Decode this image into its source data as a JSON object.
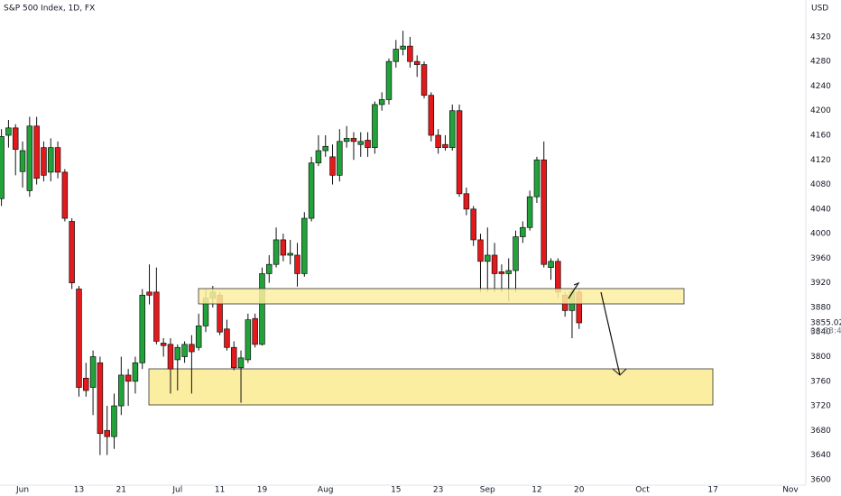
{
  "chart_data": {
    "type": "candlestick",
    "title": "S&P 500 Index, 1D, FX",
    "currency": "USD",
    "countdown": "06:33:46",
    "up_color": "#22a33a",
    "down_color": "#e3191c",
    "grid": false,
    "categories": [
      null,
      null,
      null,
      "Jun",
      null,
      null,
      null,
      null,
      null,
      null,
      null,
      "13",
      null,
      null,
      null,
      null,
      null,
      "21",
      null,
      null,
      null,
      null,
      null,
      null,
      null,
      "Jul",
      null,
      null,
      null,
      null,
      null,
      "11",
      null,
      null,
      null,
      null,
      null,
      "19",
      null,
      null,
      null,
      null,
      null,
      null,
      null,
      null,
      "Aug",
      null,
      null,
      null,
      null,
      null,
      null,
      null,
      null,
      null,
      "15",
      null,
      null,
      null,
      null,
      null,
      "23",
      null,
      null,
      null,
      null,
      null,
      null,
      "Sep",
      null,
      null,
      null,
      null,
      null,
      null,
      "12",
      null,
      null,
      null,
      null,
      null,
      "20",
      null,
      null,
      null,
      null,
      null,
      null,
      null,
      null,
      "Oct",
      null,
      null,
      null,
      null,
      null,
      null,
      null,
      null,
      null,
      "17",
      null,
      null,
      null,
      null,
      null,
      null,
      null,
      null,
      null,
      null,
      "Nov",
      null
    ],
    "open": [
      4057,
      4160,
      4172,
      4101,
      4070,
      4175,
      4140,
      4100,
      4140,
      4100,
      4020,
      3910,
      3765,
      3750,
      3790,
      3680,
      3670,
      3720,
      3770,
      3760,
      3790,
      3905,
      3905,
      3822,
      3820,
      3795,
      3800,
      3820,
      3815,
      3850,
      3895,
      3900,
      3845,
      3815,
      3782,
      3795,
      3862,
      3820,
      3935,
      3950,
      3990,
      3965,
      3965,
      3935,
      4025,
      4115,
      4135,
      4125,
      4095,
      4150,
      4155,
      4145,
      4152,
      4140,
      4210,
      4218,
      4280,
      4300,
      4305,
      4280,
      4275,
      4225,
      4160,
      4145,
      4140,
      4200,
      4065,
      4040,
      3990,
      3955,
      3965,
      3938,
      3935,
      3940,
      3995,
      4010,
      4060,
      4120,
      3945,
      3955,
      3900,
      3875,
      3905,
      null,
      null,
      null,
      null,
      null,
      null,
      null,
      null,
      null,
      null,
      null,
      null,
      null,
      null,
      null,
      null,
      null,
      null,
      null,
      null,
      null,
      null,
      null,
      null,
      null,
      null,
      null,
      null,
      null,
      null,
      null
    ],
    "high": [
      4170,
      4185,
      4178,
      4150,
      4190,
      4190,
      4150,
      4155,
      4150,
      4105,
      4025,
      3915,
      3790,
      3810,
      3800,
      3720,
      3740,
      3800,
      3780,
      3800,
      3910,
      3950,
      3945,
      3830,
      3830,
      3820,
      3825,
      3835,
      3870,
      3910,
      3915,
      3905,
      3860,
      3825,
      3810,
      3870,
      3870,
      3945,
      3965,
      4010,
      4000,
      3990,
      3985,
      4035,
      4125,
      4160,
      4160,
      4145,
      4170,
      4175,
      4165,
      4165,
      4165,
      4215,
      4230,
      4285,
      4315,
      4330,
      4320,
      4290,
      4280,
      4230,
      4170,
      4160,
      4210,
      4210,
      4075,
      4045,
      4000,
      4010,
      3985,
      3950,
      3960,
      4005,
      4020,
      4070,
      4125,
      4150,
      3960,
      3960,
      3905,
      3910,
      3910,
      null,
      null,
      null,
      null,
      null,
      null,
      null,
      null,
      null,
      null,
      null,
      null,
      null,
      null,
      null,
      null,
      null,
      null,
      null,
      null,
      null,
      null,
      null,
      null,
      null,
      null,
      null,
      null,
      null,
      null,
      null
    ],
    "low": [
      4045,
      4140,
      4095,
      4075,
      4060,
      4080,
      4085,
      4085,
      4090,
      4020,
      3910,
      3735,
      3735,
      3705,
      3640,
      3640,
      3650,
      3705,
      3720,
      3740,
      3780,
      3885,
      3820,
      3800,
      3740,
      3745,
      3790,
      3740,
      3810,
      3840,
      3880,
      3835,
      3810,
      3778,
      3725,
      3790,
      3815,
      3818,
      3920,
      3945,
      3955,
      3950,
      3914,
      3930,
      4020,
      4110,
      4125,
      4080,
      4085,
      4140,
      4120,
      4125,
      4125,
      4130,
      4200,
      4210,
      4270,
      4290,
      4270,
      4255,
      4220,
      4150,
      4130,
      4135,
      4135,
      4060,
      4030,
      3980,
      3905,
      3905,
      3905,
      3905,
      3890,
      3905,
      3985,
      4005,
      4050,
      3945,
      3925,
      3895,
      3865,
      3830,
      3845,
      null,
      null,
      null,
      null,
      null,
      null,
      null,
      null,
      null,
      null,
      null,
      null,
      null,
      null,
      null,
      null,
      null,
      null,
      null,
      null,
      null,
      null,
      null,
      null,
      null,
      null,
      null,
      null,
      null,
      null,
      null
    ],
    "close": [
      4158,
      4172,
      4137,
      4135,
      4175,
      4090,
      4095,
      4140,
      4100,
      4025,
      3920,
      3750,
      3745,
      3800,
      3675,
      3670,
      3720,
      3770,
      3760,
      3790,
      3900,
      3900,
      3825,
      3818,
      3780,
      3815,
      3820,
      3808,
      3850,
      3895,
      3905,
      3840,
      3815,
      3782,
      3798,
      3860,
      3820,
      3935,
      3950,
      3990,
      3965,
      3968,
      3935,
      4025,
      4115,
      4135,
      4142,
      4095,
      4150,
      4155,
      4150,
      4150,
      4140,
      4210,
      4218,
      4280,
      4300,
      4305,
      4280,
      4275,
      4225,
      4160,
      4140,
      4140,
      4200,
      4065,
      4040,
      3990,
      3955,
      3965,
      3935,
      3935,
      3940,
      3995,
      4010,
      4060,
      4120,
      3950,
      3955,
      3905,
      3875,
      3905,
      3855.02,
      null,
      null,
      null,
      null,
      null,
      null,
      null,
      null,
      null,
      null,
      null,
      null,
      null,
      null,
      null,
      null,
      null,
      null,
      null,
      null,
      null,
      null,
      null,
      null,
      null,
      null,
      null,
      null,
      null,
      null,
      null
    ],
    "ylim": [
      3591,
      4380
    ],
    "yticks": [
      3600,
      3640,
      3680,
      3720,
      3760,
      3800,
      3840,
      3880,
      3920,
      3960,
      4000,
      4040,
      4080,
      4120,
      4160,
      4200,
      4240,
      4280,
      4320
    ]
  }
}
